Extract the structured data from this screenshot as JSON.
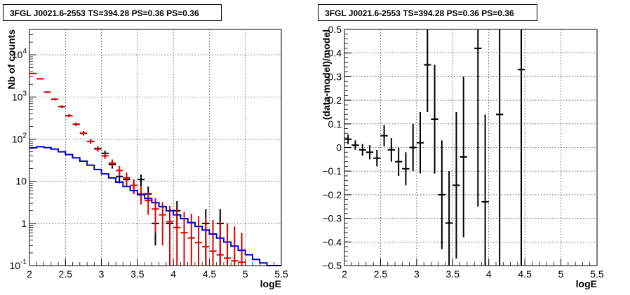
{
  "chart_data": [
    {
      "type": "line",
      "title": "3FGL J0021.6-2553 TS=394.28 PS=0.36 PS=0.36",
      "xlabel": "logE",
      "ylabel": "Nb of counts",
      "xlim": [
        2,
        5.5
      ],
      "ylim": [
        0.1,
        40000
      ],
      "yscale": "log",
      "grid": true,
      "x_ticks": [
        "2",
        "2.5",
        "3",
        "3.5",
        "4",
        "4.5",
        "5",
        "5.5"
      ],
      "y_ticks": [
        "10^{-1}",
        "1",
        "10",
        "10^{2}",
        "10^{3}",
        "10^{4}"
      ],
      "series": [
        {
          "style": "error-bars",
          "color": "#000000",
          "points": [
            {
              "x": 2.05,
              "y": 3600,
              "ylo": 3500,
              "yhi": 3700
            },
            {
              "x": 2.15,
              "y": 2700,
              "ylo": 2620,
              "yhi": 2780
            },
            {
              "x": 2.25,
              "y": 1300,
              "ylo": 1240,
              "yhi": 1360
            },
            {
              "x": 2.35,
              "y": 880,
              "ylo": 830,
              "yhi": 930
            },
            {
              "x": 2.45,
              "y": 590,
              "ylo": 550,
              "yhi": 630
            },
            {
              "x": 2.55,
              "y": 360,
              "ylo": 330,
              "yhi": 390
            },
            {
              "x": 2.65,
              "y": 225,
              "ylo": 205,
              "yhi": 245
            },
            {
              "x": 2.75,
              "y": 138,
              "ylo": 122,
              "yhi": 155
            },
            {
              "x": 2.85,
              "y": 88,
              "ylo": 78,
              "yhi": 99
            },
            {
              "x": 2.95,
              "y": 60,
              "ylo": 52,
              "yhi": 68
            },
            {
              "x": 3.05,
              "y": 46,
              "ylo": 39,
              "yhi": 53
            },
            {
              "x": 3.15,
              "y": 25,
              "ylo": 20,
              "yhi": 30
            },
            {
              "x": 3.25,
              "y": 13,
              "ylo": 9,
              "yhi": 17
            },
            {
              "x": 3.35,
              "y": 11,
              "ylo": 7.5,
              "yhi": 14.5
            },
            {
              "x": 3.45,
              "y": 8,
              "ylo": 5,
              "yhi": 11
            },
            {
              "x": 3.55,
              "y": 11,
              "ylo": 7.5,
              "yhi": 14.5
            },
            {
              "x": 3.65,
              "y": 5,
              "ylo": 3,
              "yhi": 7.5
            },
            {
              "x": 3.75,
              "y": 1,
              "ylo": 0.3,
              "yhi": 2.2
            },
            {
              "x": 3.95,
              "y": 1,
              "ylo": 0.1,
              "yhi": 2.2
            },
            {
              "x": 4.05,
              "y": 2,
              "ylo": 0.8,
              "yhi": 3.4
            },
            {
              "x": 4.45,
              "y": 1,
              "ylo": 0.1,
              "yhi": 2.2
            },
            {
              "x": 4.65,
              "y": 1,
              "ylo": 0.1,
              "yhi": 2.2
            }
          ]
        },
        {
          "style": "error-bars",
          "color": "#dd0000",
          "points": [
            {
              "x": 2.05,
              "y": 3600,
              "ylo": 3450,
              "yhi": 3750
            },
            {
              "x": 2.15,
              "y": 2700,
              "ylo": 2600,
              "yhi": 2800
            },
            {
              "x": 2.25,
              "y": 1300,
              "ylo": 1240,
              "yhi": 1360
            },
            {
              "x": 2.35,
              "y": 880,
              "ylo": 830,
              "yhi": 930
            },
            {
              "x": 2.45,
              "y": 590,
              "ylo": 550,
              "yhi": 630
            },
            {
              "x": 2.55,
              "y": 360,
              "ylo": 330,
              "yhi": 390
            },
            {
              "x": 2.65,
              "y": 225,
              "ylo": 205,
              "yhi": 245
            },
            {
              "x": 2.75,
              "y": 138,
              "ylo": 122,
              "yhi": 155
            },
            {
              "x": 2.85,
              "y": 88,
              "ylo": 78,
              "yhi": 99
            },
            {
              "x": 2.95,
              "y": 58,
              "ylo": 50,
              "yhi": 66
            },
            {
              "x": 3.05,
              "y": 40,
              "ylo": 34,
              "yhi": 47
            },
            {
              "x": 3.15,
              "y": 27,
              "ylo": 22,
              "yhi": 33
            },
            {
              "x": 3.25,
              "y": 18,
              "ylo": 13,
              "yhi": 23
            },
            {
              "x": 3.35,
              "y": 12,
              "ylo": 8,
              "yhi": 16
            },
            {
              "x": 3.45,
              "y": 8,
              "ylo": 5,
              "yhi": 11
            },
            {
              "x": 3.55,
              "y": 5,
              "ylo": 2.8,
              "yhi": 7.5
            },
            {
              "x": 3.65,
              "y": 3.5,
              "ylo": 1.6,
              "yhi": 5.5
            },
            {
              "x": 3.75,
              "y": 2.2,
              "ylo": 0.6,
              "yhi": 4
            },
            {
              "x": 3.85,
              "y": 1.6,
              "ylo": 0.3,
              "yhi": 3.2
            },
            {
              "x": 3.95,
              "y": 1.1,
              "ylo": 0.1,
              "yhi": 2.6
            },
            {
              "x": 4.05,
              "y": 0.8,
              "ylo": 0.1,
              "yhi": 2.2
            },
            {
              "x": 4.15,
              "y": 0.6,
              "ylo": 0.1,
              "yhi": 1.9
            },
            {
              "x": 4.25,
              "y": 0.45,
              "ylo": 0.1,
              "yhi": 1.7
            },
            {
              "x": 4.35,
              "y": 0.35,
              "ylo": 0.1,
              "yhi": 1.5
            },
            {
              "x": 4.45,
              "y": 0.28,
              "ylo": 0.1,
              "yhi": 1.35
            },
            {
              "x": 4.55,
              "y": 0.22,
              "ylo": 0.1,
              "yhi": 1.2
            },
            {
              "x": 4.65,
              "y": 0.18,
              "ylo": 0.1,
              "yhi": 1.1
            },
            {
              "x": 4.75,
              "y": 0.15,
              "ylo": 0.1,
              "yhi": 1.0
            },
            {
              "x": 4.85,
              "y": 0.13,
              "ylo": 0.1,
              "yhi": 0.85
            },
            {
              "x": 4.95,
              "y": 0.12,
              "ylo": 0.1,
              "yhi": 0.6
            }
          ]
        },
        {
          "style": "step",
          "color": "#0000cc",
          "edges": [
            2.0,
            2.1,
            2.2,
            2.3,
            2.4,
            2.5,
            2.6,
            2.7,
            2.8,
            2.9,
            3.0,
            3.1,
            3.2,
            3.3,
            3.4,
            3.5,
            3.6,
            3.7,
            3.8,
            3.9,
            4.0,
            4.1,
            4.2,
            4.3,
            4.4,
            4.5,
            4.6,
            4.7,
            4.8,
            4.9,
            5.0,
            5.1,
            5.2,
            5.3,
            5.4,
            5.5
          ],
          "values": [
            62,
            66,
            63,
            58,
            50,
            43,
            36,
            30,
            24,
            19,
            15,
            12,
            9.5,
            7.5,
            6,
            4.8,
            3.9,
            3.1,
            2.5,
            2.0,
            1.6,
            1.3,
            1.05,
            0.85,
            0.7,
            0.56,
            0.45,
            0.36,
            0.29,
            0.23,
            0.18,
            0.14,
            0.115,
            0.1,
            0.1
          ]
        }
      ]
    },
    {
      "type": "scatter",
      "title": "3FGL J0021.6-2553 TS=394.28 PS=0.36 PS=0.36",
      "xlabel": "logE",
      "ylabel": "(data-model)/model",
      "xlim": [
        2,
        5.5
      ],
      "ylim": [
        -0.5,
        0.5
      ],
      "grid": true,
      "x_ticks": [
        "2",
        "2.5",
        "3",
        "3.5",
        "4",
        "4.5",
        "5",
        "5.5"
      ],
      "y_ticks": [
        "−0.5",
        "−0.4",
        "−0.3",
        "−0.2",
        "−0.1",
        "0",
        "0.1",
        "0.2",
        "0.3",
        "0.4",
        "0.5"
      ],
      "series": [
        {
          "style": "error-bars",
          "color": "#000000",
          "points": [
            {
              "x": 2.05,
              "y": 0.035,
              "ylo": 0.015,
              "yhi": 0.055
            },
            {
              "x": 2.15,
              "y": 0.01,
              "ylo": -0.01,
              "yhi": 0.03
            },
            {
              "x": 2.25,
              "y": -0.01,
              "ylo": -0.035,
              "yhi": 0.015
            },
            {
              "x": 2.35,
              "y": -0.02,
              "ylo": -0.05,
              "yhi": 0.01
            },
            {
              "x": 2.45,
              "y": -0.045,
              "ylo": -0.08,
              "yhi": -0.01
            },
            {
              "x": 2.55,
              "y": 0.05,
              "ylo": 0.005,
              "yhi": 0.095
            },
            {
              "x": 2.65,
              "y": -0.01,
              "ylo": -0.06,
              "yhi": 0.04
            },
            {
              "x": 2.75,
              "y": -0.06,
              "ylo": -0.12,
              "yhi": 0.0
            },
            {
              "x": 2.85,
              "y": -0.09,
              "ylo": -0.16,
              "yhi": -0.02
            },
            {
              "x": 2.95,
              "y": 0.0,
              "ylo": -0.1,
              "yhi": 0.1
            },
            {
              "x": 3.05,
              "y": 0.02,
              "ylo": -0.11,
              "yhi": 0.15
            },
            {
              "x": 3.15,
              "y": 0.35,
              "ylo": 0.15,
              "yhi": 0.55
            },
            {
              "x": 3.25,
              "y": 0.12,
              "ylo": -0.11,
              "yhi": 0.35
            },
            {
              "x": 3.35,
              "y": -0.2,
              "ylo": -0.43,
              "yhi": 0.03
            },
            {
              "x": 3.45,
              "y": -0.32,
              "ylo": -0.54,
              "yhi": -0.1
            },
            {
              "x": 3.55,
              "y": -0.16,
              "ylo": -0.47,
              "yhi": 0.15
            },
            {
              "x": 3.65,
              "y": -0.04,
              "ylo": -0.38,
              "yhi": 0.3
            },
            {
              "x": 3.85,
              "y": 0.42,
              "ylo": -0.25,
              "yhi": 0.6
            },
            {
              "x": 3.95,
              "y": -0.23,
              "ylo": -0.6,
              "yhi": 0.14
            },
            {
              "x": 4.15,
              "y": 0.14,
              "ylo": -0.6,
              "yhi": 0.6
            },
            {
              "x": 4.45,
              "y": 0.33,
              "ylo": -0.6,
              "yhi": 0.6
            }
          ]
        }
      ]
    }
  ]
}
